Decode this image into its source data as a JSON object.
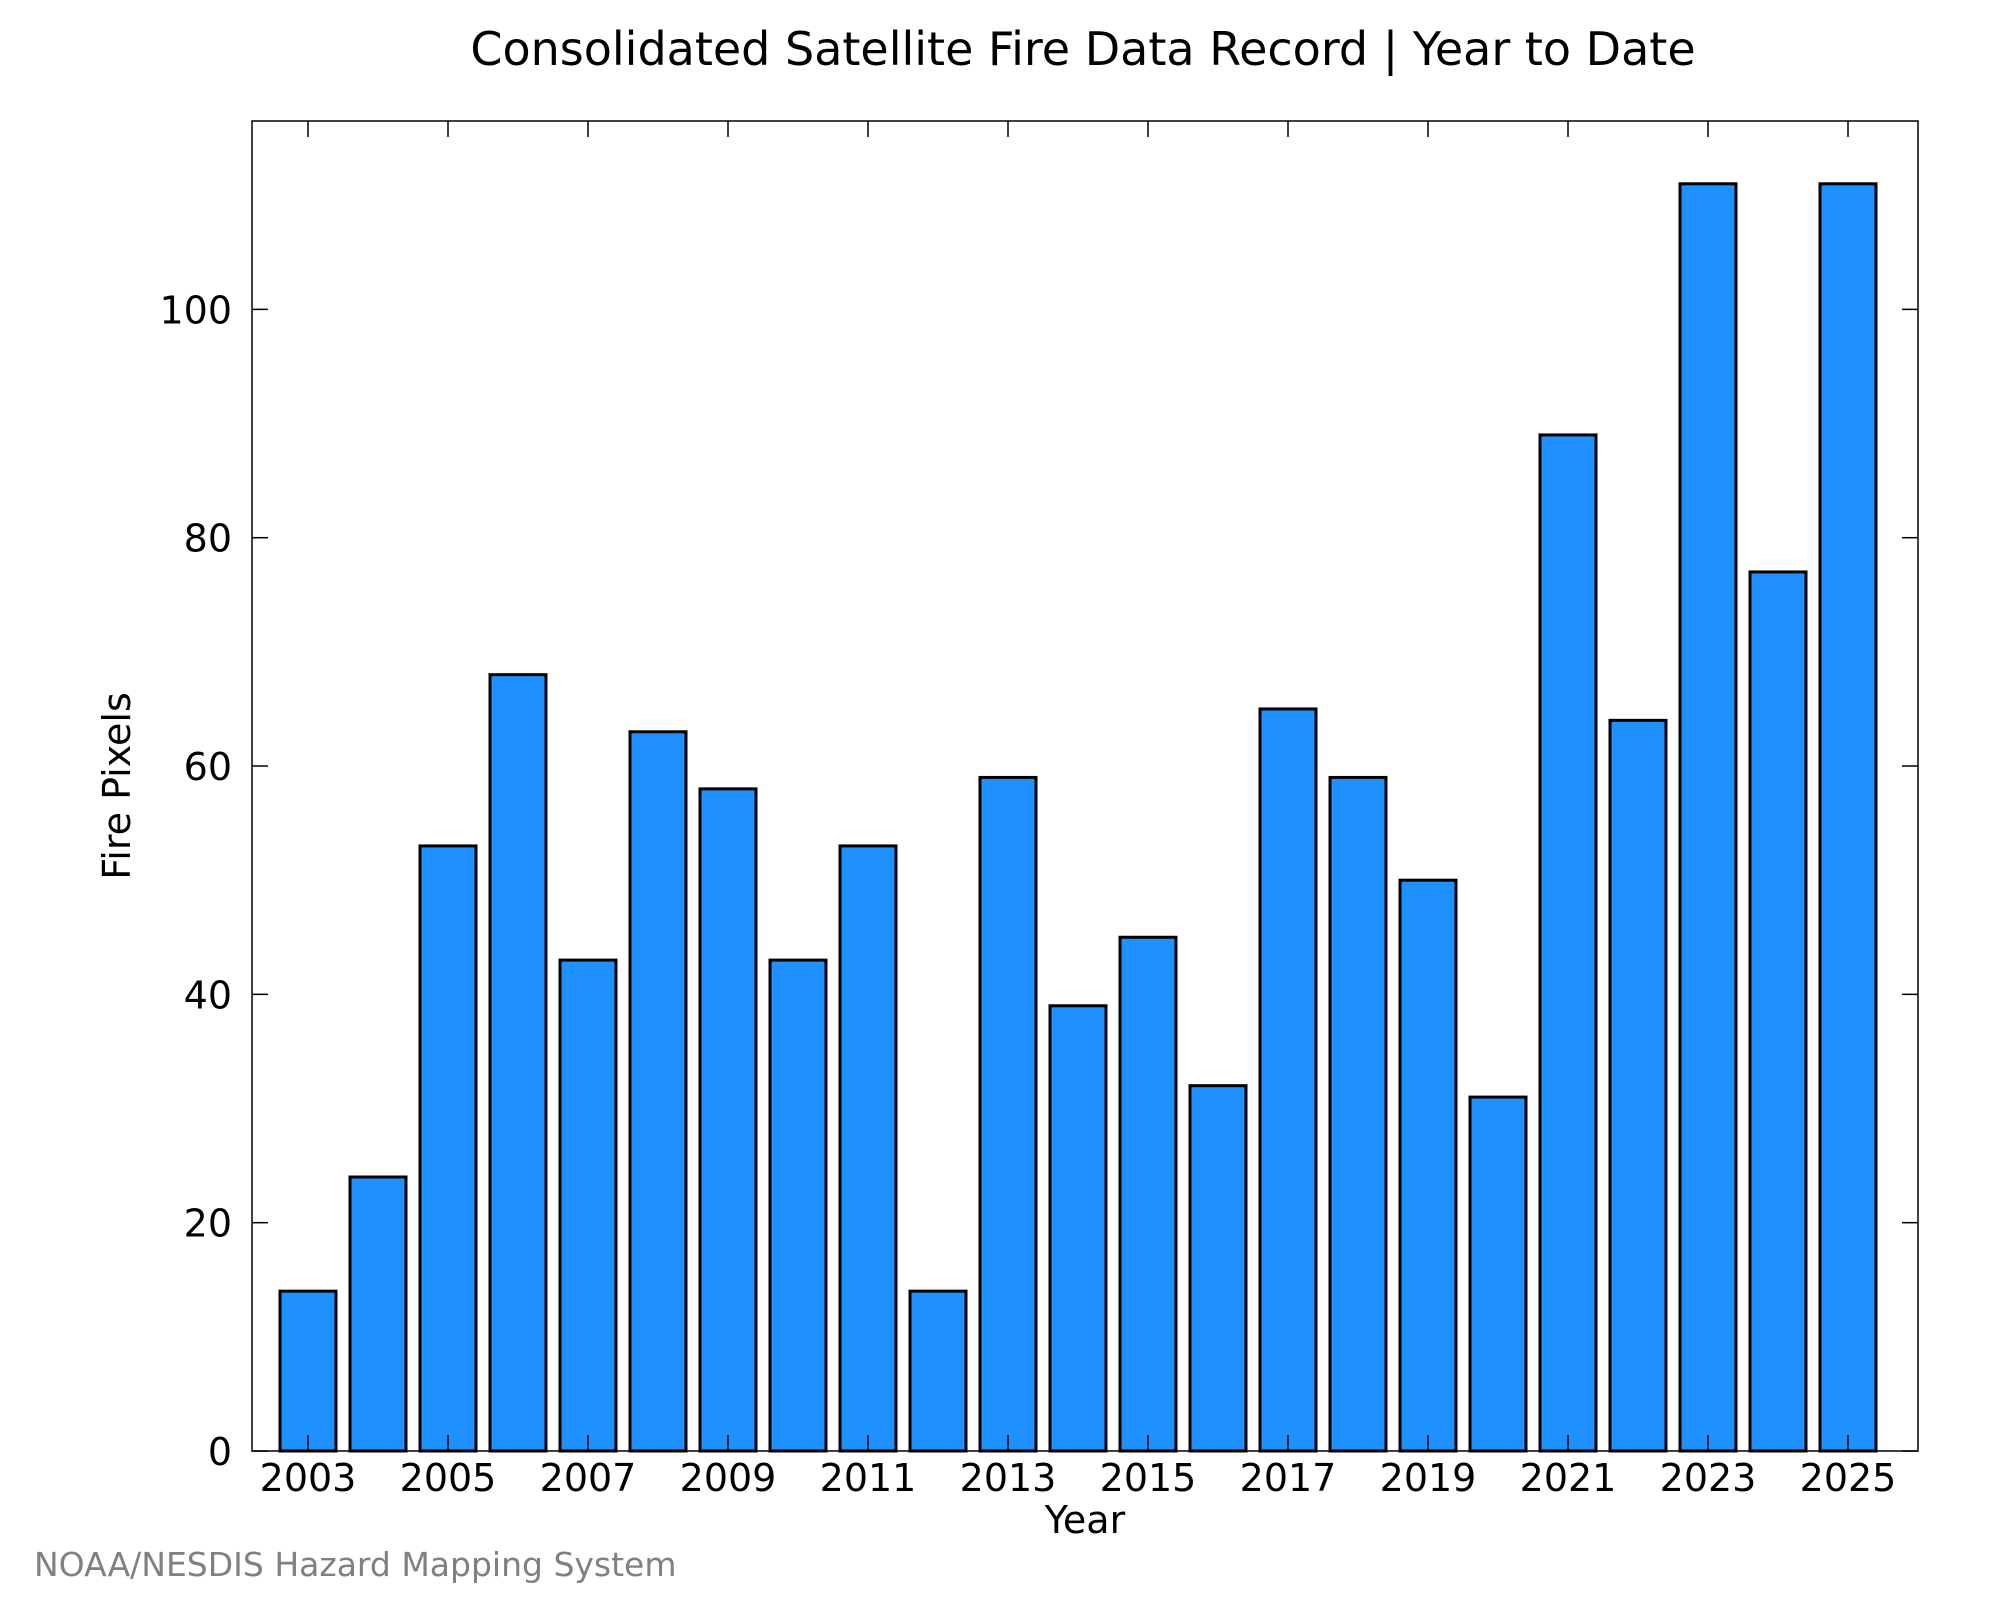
{
  "chart_data": {
    "type": "bar",
    "title": "Consolidated Satellite Fire Data Record | Year to Date",
    "xlabel": "Year",
    "ylabel": "Fire Pixels",
    "categories": [
      2003,
      2004,
      2005,
      2006,
      2007,
      2008,
      2009,
      2010,
      2011,
      2012,
      2013,
      2014,
      2015,
      2016,
      2017,
      2018,
      2019,
      2020,
      2021,
      2022,
      2023,
      2024,
      2025
    ],
    "values": [
      14,
      24,
      53,
      68,
      43,
      63,
      58,
      43,
      53,
      14,
      59,
      39,
      45,
      32,
      65,
      59,
      50,
      31,
      89,
      64,
      111,
      77,
      111
    ],
    "x_tick_labels": [
      "2003",
      "2005",
      "2007",
      "2009",
      "2011",
      "2013",
      "2015",
      "2017",
      "2019",
      "2021",
      "2023",
      "2025"
    ],
    "y_tick_labels": [
      "0",
      "20",
      "40",
      "60",
      "80",
      "100"
    ],
    "ylim": [
      0,
      116.5
    ],
    "xlim": [
      2002.2,
      2026
    ],
    "bar_color": "#1e90ff",
    "bar_edge_color": "#000000",
    "grid": false,
    "legend": "none"
  },
  "credit": "NOAA/NESDIS Hazard Mapping System"
}
